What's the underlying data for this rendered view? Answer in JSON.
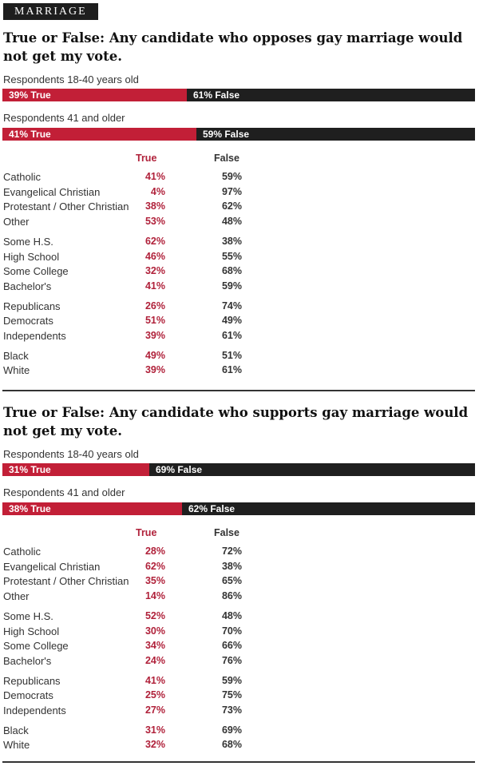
{
  "tag": "MARRIAGE",
  "colors": {
    "true": "#c21f37",
    "false": "#1f1f1f"
  },
  "chart_data": [
    {
      "type": "table",
      "title": "True or False: Any candidate who opposes gay marriage would not get my vote.",
      "groups": [
        {
          "label": "Respondents 18-40 years old",
          "true_pct": 39,
          "false_pct": 61,
          "true_label": "39% True",
          "false_label": "61% False"
        },
        {
          "label": "Respondents 41 and older",
          "true_pct": 41,
          "false_pct": 59,
          "true_label": "41% True",
          "false_label": "59% False"
        }
      ],
      "columns": [
        "True",
        "False"
      ],
      "blocks": [
        [
          {
            "name": "Catholic",
            "true": "41%",
            "false": "59%"
          },
          {
            "name": "Evangelical Christian",
            "true": "4%",
            "false": "97%"
          },
          {
            "name": "Protestant / Other Christian",
            "true": "38%",
            "false": "62%"
          },
          {
            "name": "Other",
            "true": "53%",
            "false": "48%"
          }
        ],
        [
          {
            "name": "Some H.S.",
            "true": "62%",
            "false": "38%"
          },
          {
            "name": "High School",
            "true": "46%",
            "false": "55%"
          },
          {
            "name": "Some College",
            "true": "32%",
            "false": "68%"
          },
          {
            "name": "Bachelor's",
            "true": "41%",
            "false": "59%"
          }
        ],
        [
          {
            "name": "Republicans",
            "true": "26%",
            "false": "74%"
          },
          {
            "name": "Democrats",
            "true": "51%",
            "false": "49%"
          },
          {
            "name": "Independents",
            "true": "39%",
            "false": "61%"
          }
        ],
        [
          {
            "name": "Black",
            "true": "49%",
            "false": "51%"
          },
          {
            "name": "White",
            "true": "39%",
            "false": "61%"
          }
        ]
      ]
    },
    {
      "type": "table",
      "title": "True or False: Any candidate who supports gay marriage would not get my vote.",
      "groups": [
        {
          "label": "Respondents 18-40 years old",
          "true_pct": 31,
          "false_pct": 69,
          "true_label": "31% True",
          "false_label": "69% False"
        },
        {
          "label": "Respondents 41 and older",
          "true_pct": 38,
          "false_pct": 62,
          "true_label": "38% True",
          "false_label": "62% False"
        }
      ],
      "columns": [
        "True",
        "False"
      ],
      "blocks": [
        [
          {
            "name": "Catholic",
            "true": "28%",
            "false": "72%"
          },
          {
            "name": "Evangelical Christian",
            "true": "62%",
            "false": "38%"
          },
          {
            "name": "Protestant / Other Christian",
            "true": "35%",
            "false": "65%"
          },
          {
            "name": "Other",
            "true": "14%",
            "false": "86%"
          }
        ],
        [
          {
            "name": "Some H.S.",
            "true": "52%",
            "false": "48%"
          },
          {
            "name": "High School",
            "true": "30%",
            "false": "70%"
          },
          {
            "name": "Some College",
            "true": "34%",
            "false": "66%"
          },
          {
            "name": "Bachelor's",
            "true": "24%",
            "false": "76%"
          }
        ],
        [
          {
            "name": "Republicans",
            "true": "41%",
            "false": "59%"
          },
          {
            "name": "Democrats",
            "true": "25%",
            "false": "75%"
          },
          {
            "name": "Independents",
            "true": "27%",
            "false": "73%"
          }
        ],
        [
          {
            "name": "Black",
            "true": "31%",
            "false": "69%"
          },
          {
            "name": "White",
            "true": "32%",
            "false": "68%"
          }
        ]
      ]
    }
  ]
}
